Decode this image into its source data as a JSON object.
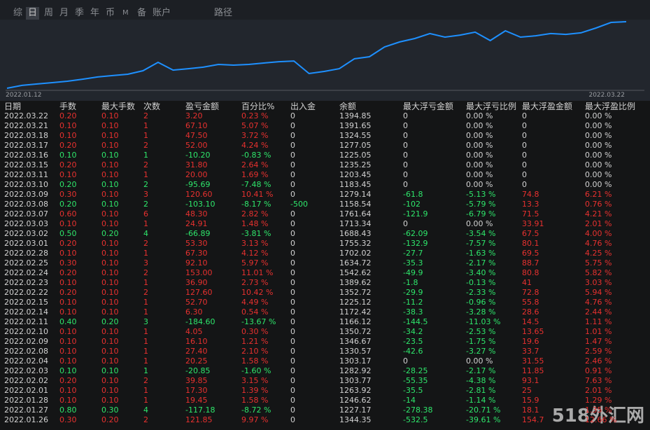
{
  "tabs": [
    "综",
    "日",
    "周",
    "月",
    "季",
    "年",
    "币",
    "M",
    "备",
    "账户",
    "路径"
  ],
  "selected_tab": 1,
  "chart_data": {
    "type": "line",
    "x_start_label": "2022.01.12",
    "x_end_label": "2022.03.22",
    "color": "#1e90ff",
    "ylim": [
      1000,
      1400
    ],
    "values": [
      1008,
      1025,
      1033,
      1041,
      1049,
      1061,
      1074,
      1082,
      1090,
      1110,
      1159,
      1114,
      1122,
      1131,
      1147,
      1143,
      1147,
      1155,
      1163,
      1167,
      1094,
      1106,
      1122,
      1180,
      1192,
      1249,
      1278,
      1298,
      1327,
      1306,
      1318,
      1335,
      1286,
      1343,
      1306,
      1314,
      1327,
      1322,
      1331,
      1359,
      1392,
      1396
    ]
  },
  "colors": {
    "up": "#e8312f",
    "down": "#2ee66b",
    "plain": "#d2d2d2"
  },
  "table": {
    "header": [
      "日期",
      "手数",
      "最大手数",
      "次数",
      "盈亏金额",
      "百分比%",
      "出入金",
      "余额",
      "最大浮亏金额",
      "最大浮亏比例",
      "最大浮盈金额",
      "最大浮盈比例"
    ],
    "rows": [
      [
        "2022.03.22",
        "0.20",
        "0.10",
        "2",
        "3.20",
        "0.23 %",
        "0",
        "1394.85",
        "0",
        "0.00 %",
        "0",
        "0.00 %"
      ],
      [
        "2022.03.21",
        "0.10",
        "0.10",
        "1",
        "67.10",
        "5.07 %",
        "0",
        "1391.65",
        "0",
        "0.00 %",
        "0",
        "0.00 %"
      ],
      [
        "2022.03.18",
        "0.10",
        "0.10",
        "1",
        "47.50",
        "3.72 %",
        "0",
        "1324.55",
        "0",
        "0.00 %",
        "0",
        "0.00 %"
      ],
      [
        "2022.03.17",
        "0.20",
        "0.10",
        "2",
        "52.00",
        "4.24 %",
        "0",
        "1277.05",
        "0",
        "0.00 %",
        "0",
        "0.00 %"
      ],
      [
        "2022.03.16",
        "0.10",
        "0.10",
        "1",
        "-10.20",
        "-0.83 %",
        "0",
        "1225.05",
        "0",
        "0.00 %",
        "0",
        "0.00 %"
      ],
      [
        "2022.03.15",
        "0.20",
        "0.10",
        "2",
        "31.80",
        "2.64 %",
        "0",
        "1235.25",
        "0",
        "0.00 %",
        "0",
        "0.00 %"
      ],
      [
        "2022.03.11",
        "0.10",
        "0.10",
        "1",
        "20.00",
        "1.69 %",
        "0",
        "1203.45",
        "0",
        "0.00 %",
        "0",
        "0.00 %"
      ],
      [
        "2022.03.10",
        "0.20",
        "0.10",
        "2",
        "-95.69",
        "-7.48 %",
        "0",
        "1183.45",
        "0",
        "0.00 %",
        "0",
        "0.00 %"
      ],
      [
        "2022.03.09",
        "0.30",
        "0.10",
        "3",
        "120.60",
        "10.41 %",
        "0",
        "1279.14",
        "-61.8",
        "-5.13 %",
        "74.8",
        "6.21 %"
      ],
      [
        "2022.03.08",
        "0.20",
        "0.10",
        "2",
        "-103.10",
        "-8.17 %",
        "-500",
        "1158.54",
        "-102",
        "-5.79 %",
        "13.3",
        "0.76 %"
      ],
      [
        "2022.03.07",
        "0.60",
        "0.10",
        "6",
        "48.30",
        "2.82 %",
        "0",
        "1761.64",
        "-121.9",
        "-6.79 %",
        "71.5",
        "4.21 %"
      ],
      [
        "2022.03.03",
        "0.10",
        "0.10",
        "1",
        "24.91",
        "1.48 %",
        "0",
        "1713.34",
        "0",
        "0.00 %",
        "33.91",
        "2.01 %"
      ],
      [
        "2022.03.02",
        "0.50",
        "0.20",
        "4",
        "-66.89",
        "-3.81 %",
        "0",
        "1688.43",
        "-62.09",
        "-3.54 %",
        "67.5",
        "4.00 %"
      ],
      [
        "2022.03.01",
        "0.20",
        "0.10",
        "2",
        "53.30",
        "3.13 %",
        "0",
        "1755.32",
        "-132.9",
        "-7.57 %",
        "80.1",
        "4.76 %"
      ],
      [
        "2022.02.28",
        "0.10",
        "0.10",
        "1",
        "67.30",
        "4.12 %",
        "0",
        "1702.02",
        "-27.7",
        "-1.63 %",
        "69.5",
        "4.25 %"
      ],
      [
        "2022.02.25",
        "0.30",
        "0.10",
        "3",
        "92.10",
        "5.97 %",
        "0",
        "1634.72",
        "-35.3",
        "-2.17 %",
        "88.7",
        "5.75 %"
      ],
      [
        "2022.02.24",
        "0.20",
        "0.10",
        "2",
        "153.00",
        "11.01 %",
        "0",
        "1542.62",
        "-49.9",
        "-3.40 %",
        "80.8",
        "5.82 %"
      ],
      [
        "2022.02.23",
        "0.10",
        "0.10",
        "1",
        "36.90",
        "2.73 %",
        "0",
        "1389.62",
        "-1.8",
        "-0.13 %",
        "41",
        "3.03 %"
      ],
      [
        "2022.02.22",
        "0.20",
        "0.10",
        "2",
        "127.60",
        "10.42 %",
        "0",
        "1352.72",
        "-29.9",
        "-2.33 %",
        "72.8",
        "5.94 %"
      ],
      [
        "2022.02.15",
        "0.10",
        "0.10",
        "1",
        "52.70",
        "4.49 %",
        "0",
        "1225.12",
        "-11.2",
        "-0.96 %",
        "55.8",
        "4.76 %"
      ],
      [
        "2022.02.14",
        "0.10",
        "0.10",
        "1",
        "6.30",
        "0.54 %",
        "0",
        "1172.42",
        "-38.3",
        "-3.28 %",
        "28.6",
        "2.44 %"
      ],
      [
        "2022.02.11",
        "0.40",
        "0.20",
        "3",
        "-184.60",
        "-13.67 %",
        "0",
        "1166.12",
        "-144.5",
        "-11.03 %",
        "14.5",
        "1.11 %"
      ],
      [
        "2022.02.10",
        "0.10",
        "0.10",
        "1",
        "4.05",
        "0.30 %",
        "0",
        "1350.72",
        "-34.2",
        "-2.53 %",
        "13.65",
        "1.01 %"
      ],
      [
        "2022.02.09",
        "0.10",
        "0.10",
        "1",
        "16.10",
        "1.21 %",
        "0",
        "1346.67",
        "-23.5",
        "-1.75 %",
        "19.6",
        "1.47 %"
      ],
      [
        "2022.02.08",
        "0.10",
        "0.10",
        "1",
        "27.40",
        "2.10 %",
        "0",
        "1330.57",
        "-42.6",
        "-3.27 %",
        "33.7",
        "2.59 %"
      ],
      [
        "2022.02.04",
        "0.10",
        "0.10",
        "1",
        "20.25",
        "1.58 %",
        "0",
        "1303.17",
        "0",
        "0.00 %",
        "31.55",
        "2.46 %"
      ],
      [
        "2022.02.03",
        "0.10",
        "0.10",
        "1",
        "-20.85",
        "-1.60 %",
        "0",
        "1282.92",
        "-28.25",
        "-2.17 %",
        "11.85",
        "0.91 %"
      ],
      [
        "2022.02.02",
        "0.20",
        "0.10",
        "2",
        "39.85",
        "3.15 %",
        "0",
        "1303.77",
        "-55.35",
        "-4.38 %",
        "93.1",
        "7.63 %"
      ],
      [
        "2022.02.01",
        "0.10",
        "0.10",
        "1",
        "17.30",
        "1.39 %",
        "0",
        "1263.92",
        "-35.5",
        "-2.81 %",
        "25",
        "2.01 %"
      ],
      [
        "2022.01.28",
        "0.10",
        "0.10",
        "1",
        "19.45",
        "1.58 %",
        "0",
        "1246.62",
        "-14",
        "-1.14 %",
        "15.9",
        "1.29 %"
      ],
      [
        "2022.01.27",
        "0.80",
        "0.30",
        "4",
        "-117.18",
        "-8.72 %",
        "0",
        "1227.17",
        "-278.38",
        "-20.71 %",
        "18.1",
        "1.35 %"
      ],
      [
        "2022.01.26",
        "0.30",
        "0.20",
        "2",
        "121.85",
        "9.97 %",
        "0",
        "1344.35",
        "-532.5",
        "-39.61 %",
        "154.7",
        "12.66 %"
      ]
    ]
  },
  "watermark": "518外汇网"
}
